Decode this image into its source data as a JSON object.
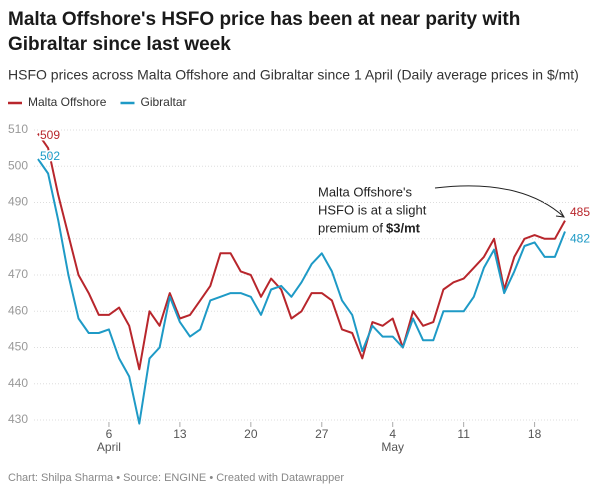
{
  "chart_data": {
    "type": "line",
    "title": "Malta Offshore's HSFO price has been at near parity with Gibraltar since last week",
    "subtitle": "HSFO prices across Malta Offshore and Gibraltar since 1 April (Daily average prices in $/mt)",
    "source": "Chart: Shilpa Sharma • Source: ENGINE • Created with Datawrapper",
    "annotation": {
      "lines": [
        "Malta Offshore's",
        "HSFO is at a slight",
        "premium of "
      ],
      "bold": "$3/mt"
    },
    "categories": [
      null,
      null,
      null,
      null,
      null,
      null,
      null,
      "6",
      null,
      null,
      null,
      null,
      null,
      null,
      "13",
      null,
      null,
      null,
      null,
      null,
      null,
      "20",
      null,
      null,
      null,
      null,
      null,
      null,
      "27",
      null,
      null,
      null,
      null,
      null,
      null,
      "4",
      null,
      null,
      null,
      null,
      null,
      null,
      "11",
      null,
      null,
      null,
      null,
      null,
      null,
      "18",
      null,
      null,
      null
    ],
    "month_labels": [
      null,
      null,
      null,
      null,
      null,
      null,
      null,
      "April",
      null,
      null,
      null,
      null,
      null,
      null,
      null,
      null,
      null,
      null,
      null,
      null,
      null,
      null,
      null,
      null,
      null,
      null,
      null,
      null,
      null,
      null,
      null,
      null,
      null,
      null,
      null,
      "May",
      null,
      null,
      null,
      null,
      null,
      null,
      null,
      null,
      null,
      null,
      null,
      null,
      null,
      null,
      null,
      null,
      null
    ],
    "series": [
      {
        "name": "Malta Offshore",
        "color": "#b8262c",
        "values": [
          509,
          505,
          492,
          481,
          470,
          465,
          459,
          459,
          461,
          456,
          444,
          460,
          456,
          465,
          458,
          459,
          463,
          467,
          476,
          476,
          471,
          470,
          464,
          469,
          466,
          458,
          460,
          465,
          465,
          463,
          455,
          454,
          447,
          457,
          456,
          458,
          450,
          460,
          456,
          457,
          466,
          468,
          469,
          472,
          475,
          480,
          466,
          475,
          480,
          481,
          480,
          480,
          485
        ]
      },
      {
        "name": "Gibraltar",
        "color": "#1e9ac6",
        "values": [
          502,
          498,
          485,
          470,
          458,
          454,
          454,
          455,
          447,
          442,
          429,
          447,
          450,
          464,
          457,
          453,
          455,
          463,
          464,
          465,
          465,
          464,
          459,
          466,
          467,
          464,
          468,
          473,
          476,
          471,
          463,
          459,
          449,
          456,
          453,
          453,
          450,
          458,
          452,
          452,
          460,
          460,
          460,
          464,
          472,
          477,
          465,
          471,
          478,
          479,
          475,
          475,
          482
        ]
      }
    ],
    "ylim": [
      430,
      510
    ],
    "yticks": [
      430,
      440,
      450,
      460,
      470,
      480,
      490,
      500,
      510
    ],
    "grid": true,
    "legend": "top-left"
  }
}
